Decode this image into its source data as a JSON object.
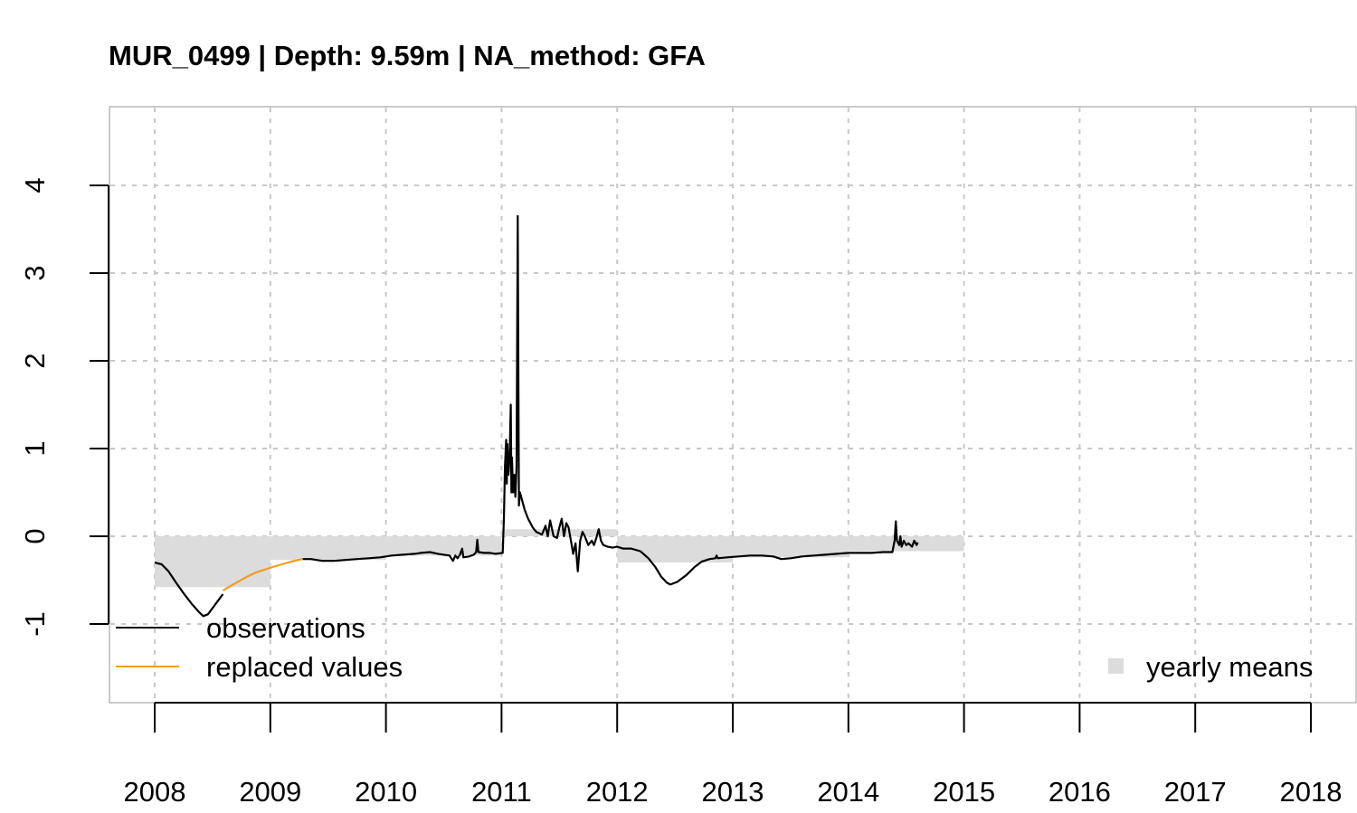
{
  "chart_data": {
    "type": "line",
    "title": "MUR_0499 | Depth: 9.59m | NA_method: GFA",
    "xlabel": "",
    "ylabel": "",
    "xlim": [
      2008,
      2018
    ],
    "ylim": [
      -1,
      4
    ],
    "x_ticks": [
      "2008",
      "2009",
      "2010",
      "2011",
      "2012",
      "2013",
      "2014",
      "2015",
      "2016",
      "2017",
      "2018"
    ],
    "y_ticks": [
      "-1",
      "0",
      "1",
      "2",
      "3",
      "4"
    ],
    "grid": true,
    "legend_left": [
      {
        "label": "observations",
        "color": "#000000",
        "kind": "line"
      },
      {
        "label": "replaced values",
        "color": "#f39c1f",
        "kind": "line"
      }
    ],
    "legend_right": [
      {
        "label": "yearly means",
        "color": "#dcdcdc",
        "kind": "box"
      }
    ],
    "yearly_means": [
      {
        "year": 2008,
        "value": -0.58
      },
      {
        "year": 2009,
        "value": -0.27
      },
      {
        "year": 2010,
        "value": -0.22
      },
      {
        "year": 2011,
        "value": 0.08
      },
      {
        "year": 2012,
        "value": -0.3
      },
      {
        "year": 2013,
        "value": -0.24
      },
      {
        "year": 2014,
        "value": -0.17
      }
    ],
    "series": [
      {
        "name": "observations",
        "color": "#000000",
        "segments": [
          [
            [
              2008.0,
              -0.3
            ],
            [
              2008.06,
              -0.32
            ],
            [
              2008.12,
              -0.4
            ],
            [
              2008.18,
              -0.52
            ],
            [
              2008.25,
              -0.65
            ],
            [
              2008.32,
              -0.77
            ],
            [
              2008.38,
              -0.86
            ],
            [
              2008.42,
              -0.91
            ],
            [
              2008.46,
              -0.89
            ],
            [
              2008.5,
              -0.82
            ],
            [
              2008.55,
              -0.73
            ],
            [
              2008.59,
              -0.66
            ]
          ],
          [
            [
              2009.28,
              -0.26
            ],
            [
              2009.35,
              -0.26
            ],
            [
              2009.45,
              -0.28
            ],
            [
              2009.55,
              -0.28
            ],
            [
              2009.65,
              -0.27
            ],
            [
              2009.75,
              -0.26
            ],
            [
              2009.85,
              -0.25
            ],
            [
              2009.95,
              -0.24
            ],
            [
              2010.05,
              -0.22
            ],
            [
              2010.15,
              -0.21
            ],
            [
              2010.25,
              -0.2
            ],
            [
              2010.3,
              -0.19
            ],
            [
              2010.38,
              -0.18
            ],
            [
              2010.45,
              -0.2
            ],
            [
              2010.5,
              -0.21
            ],
            [
              2010.55,
              -0.22
            ],
            [
              2010.58,
              -0.28
            ],
            [
              2010.6,
              -0.22
            ],
            [
              2010.62,
              -0.25
            ],
            [
              2010.64,
              -0.21
            ],
            [
              2010.66,
              -0.14
            ],
            [
              2010.67,
              -0.24
            ],
            [
              2010.72,
              -0.23
            ],
            [
              2010.76,
              -0.21
            ],
            [
              2010.78,
              -0.18
            ],
            [
              2010.79,
              -0.04
            ],
            [
              2010.8,
              -0.18
            ],
            [
              2010.85,
              -0.19
            ],
            [
              2010.9,
              -0.19
            ],
            [
              2010.95,
              -0.2
            ],
            [
              2011.01,
              -0.19
            ],
            [
              2011.02,
              0.2
            ],
            [
              2011.03,
              0.8
            ],
            [
              2011.04,
              1.1
            ],
            [
              2011.045,
              0.6
            ],
            [
              2011.05,
              1.05
            ],
            [
              2011.06,
              0.7
            ],
            [
              2011.07,
              0.9
            ],
            [
              2011.08,
              1.5
            ],
            [
              2011.085,
              0.5
            ],
            [
              2011.09,
              0.9
            ],
            [
              2011.1,
              0.5
            ],
            [
              2011.11,
              0.7
            ],
            [
              2011.12,
              0.45
            ],
            [
              2011.13,
              0.8
            ],
            [
              2011.14,
              3.65
            ],
            [
              2011.15,
              0.35
            ],
            [
              2011.16,
              0.5
            ],
            [
              2011.18,
              0.4
            ],
            [
              2011.2,
              0.3
            ],
            [
              2011.23,
              0.2
            ],
            [
              2011.27,
              0.1
            ],
            [
              2011.3,
              0.05
            ],
            [
              2011.35,
              0.02
            ],
            [
              2011.38,
              0.12
            ],
            [
              2011.4,
              0.0
            ],
            [
              2011.42,
              0.18
            ],
            [
              2011.45,
              0.0
            ],
            [
              2011.48,
              -0.02
            ],
            [
              2011.5,
              0.1
            ],
            [
              2011.52,
              0.2
            ],
            [
              2011.54,
              0.0
            ],
            [
              2011.56,
              0.15
            ],
            [
              2011.58,
              0.1
            ],
            [
              2011.6,
              -0.05
            ],
            [
              2011.62,
              -0.2
            ],
            [
              2011.64,
              -0.08
            ],
            [
              2011.66,
              -0.4
            ],
            [
              2011.68,
              -0.05
            ],
            [
              2011.7,
              0.05
            ],
            [
              2011.72,
              0.0
            ],
            [
              2011.75,
              -0.1
            ],
            [
              2011.78,
              -0.05
            ],
            [
              2011.8,
              -0.1
            ],
            [
              2011.82,
              -0.02
            ],
            [
              2011.84,
              0.08
            ],
            [
              2011.86,
              -0.05
            ],
            [
              2011.88,
              -0.1
            ],
            [
              2011.92,
              -0.12
            ],
            [
              2011.96,
              -0.13
            ],
            [
              2012.0,
              -0.12
            ],
            [
              2012.05,
              -0.14
            ],
            [
              2012.12,
              -0.14
            ],
            [
              2012.2,
              -0.17
            ],
            [
              2012.27,
              -0.25
            ],
            [
              2012.33,
              -0.35
            ],
            [
              2012.38,
              -0.46
            ],
            [
              2012.43,
              -0.53
            ],
            [
              2012.46,
              -0.55
            ],
            [
              2012.52,
              -0.52
            ],
            [
              2012.6,
              -0.44
            ],
            [
              2012.67,
              -0.35
            ],
            [
              2012.73,
              -0.29
            ],
            [
              2012.8,
              -0.26
            ],
            [
              2012.85,
              -0.25
            ],
            [
              2012.86,
              -0.22
            ],
            [
              2012.87,
              -0.25
            ],
            [
              2012.95,
              -0.24
            ],
            [
              2013.05,
              -0.23
            ],
            [
              2013.15,
              -0.22
            ],
            [
              2013.25,
              -0.22
            ],
            [
              2013.35,
              -0.23
            ],
            [
              2013.42,
              -0.26
            ],
            [
              2013.5,
              -0.25
            ],
            [
              2013.6,
              -0.23
            ],
            [
              2013.7,
              -0.22
            ],
            [
              2013.8,
              -0.21
            ],
            [
              2013.9,
              -0.2
            ],
            [
              2014.0,
              -0.19
            ],
            [
              2014.1,
              -0.19
            ],
            [
              2014.2,
              -0.19
            ],
            [
              2014.3,
              -0.18
            ],
            [
              2014.38,
              -0.18
            ],
            [
              2014.4,
              -0.05
            ],
            [
              2014.41,
              0.17
            ],
            [
              2014.42,
              -0.05
            ],
            [
              2014.44,
              -0.1
            ],
            [
              2014.45,
              0.0
            ],
            [
              2014.46,
              -0.12
            ],
            [
              2014.48,
              -0.05
            ],
            [
              2014.5,
              -0.1
            ],
            [
              2014.52,
              -0.08
            ],
            [
              2014.55,
              -0.12
            ],
            [
              2014.57,
              -0.05
            ],
            [
              2014.59,
              -0.1
            ],
            [
              2014.6,
              -0.07
            ]
          ]
        ]
      },
      {
        "name": "replaced values",
        "color": "#f39c1f",
        "segments": [
          [
            [
              2008.59,
              -0.62
            ],
            [
              2008.65,
              -0.57
            ],
            [
              2008.72,
              -0.52
            ],
            [
              2008.8,
              -0.46
            ],
            [
              2008.88,
              -0.41
            ],
            [
              2008.95,
              -0.38
            ],
            [
              2009.02,
              -0.35
            ],
            [
              2009.1,
              -0.32
            ],
            [
              2009.18,
              -0.29
            ],
            [
              2009.24,
              -0.27
            ],
            [
              2009.28,
              -0.26
            ]
          ]
        ]
      }
    ]
  }
}
